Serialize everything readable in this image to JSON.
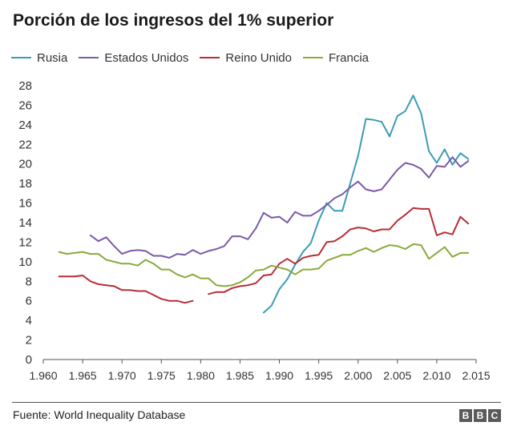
{
  "chart_data": {
    "type": "line",
    "title": "Porción de los ingresos del 1% superior",
    "xlabel": "",
    "ylabel": "",
    "xlim": [
      1960,
      2015
    ],
    "ylim": [
      0,
      28
    ],
    "x_ticks": [
      1960,
      1965,
      1970,
      1975,
      1980,
      1985,
      1990,
      1995,
      2000,
      2005,
      2010,
      2015
    ],
    "x_tick_labels": [
      "1.960",
      "1.965",
      "1.970",
      "1.975",
      "1.980",
      "1.985",
      "1.990",
      "1.995",
      "2.000",
      "2.005",
      "2.010",
      "2.015"
    ],
    "y_ticks": [
      0,
      2,
      4,
      6,
      8,
      10,
      12,
      14,
      16,
      18,
      20,
      22,
      24,
      26,
      28
    ],
    "legend_position": "top",
    "series": [
      {
        "name": "Rusia",
        "color": "#3a9cb8",
        "x": [
          1988,
          1989,
          1990,
          1991,
          1992,
          1993,
          1994,
          1995,
          1996,
          1997,
          1998,
          1999,
          2000,
          2001,
          2002,
          2003,
          2004,
          2005,
          2006,
          2007,
          2008,
          2009,
          2010,
          2011,
          2012,
          2013,
          2014
        ],
        "values": [
          4.8,
          5.5,
          7.2,
          8.2,
          9.7,
          11.0,
          11.9,
          14.2,
          16.0,
          15.2,
          15.2,
          18.0,
          20.8,
          24.6,
          24.5,
          24.3,
          22.8,
          24.9,
          25.4,
          27.0,
          25.2,
          21.3,
          20.1,
          21.5,
          19.9,
          21.1,
          20.5
        ]
      },
      {
        "name": "Estados Unidos",
        "color": "#7b5aa6",
        "x": [
          1966,
          1967,
          1968,
          1969,
          1970,
          1971,
          1972,
          1973,
          1974,
          1975,
          1976,
          1977,
          1978,
          1979,
          1980,
          1981,
          1982,
          1983,
          1984,
          1985,
          1986,
          1987,
          1988,
          1989,
          1990,
          1991,
          1992,
          1993,
          1994,
          1995,
          1996,
          1997,
          1998,
          1999,
          2000,
          2001,
          2002,
          2003,
          2004,
          2005,
          2006,
          2007,
          2008,
          2009,
          2010,
          2011,
          2012,
          2013,
          2014
        ],
        "values": [
          12.7,
          12.1,
          12.5,
          11.6,
          10.8,
          11.1,
          11.2,
          11.1,
          10.6,
          10.6,
          10.4,
          10.8,
          10.7,
          11.2,
          10.8,
          11.1,
          11.3,
          11.6,
          12.6,
          12.6,
          12.3,
          13.4,
          15.0,
          14.5,
          14.6,
          14.0,
          15.1,
          14.7,
          14.7,
          15.2,
          15.8,
          16.5,
          16.9,
          17.6,
          18.2,
          17.4,
          17.2,
          17.4,
          18.4,
          19.4,
          20.1,
          19.9,
          19.5,
          18.6,
          19.8,
          19.7,
          20.7,
          19.7,
          20.3
        ]
      },
      {
        "name": "Reino Unido",
        "color": "#b92c36",
        "x": [
          1962,
          1963,
          1964,
          1965,
          1966,
          1967,
          1968,
          1969,
          1970,
          1971,
          1972,
          1973,
          1974,
          1975,
          1976,
          1977,
          1978,
          1979,
          1980,
          1981,
          1982,
          1983,
          1984,
          1985,
          1986,
          1987,
          1988,
          1989,
          1990,
          1991,
          1992,
          1993,
          1994,
          1995,
          1996,
          1997,
          1998,
          1999,
          2000,
          2001,
          2002,
          2003,
          2004,
          2005,
          2006,
          2007,
          2008,
          2009,
          2010,
          2011,
          2012,
          2013,
          2014
        ],
        "values": [
          8.5,
          8.5,
          8.5,
          8.6,
          8.0,
          7.7,
          7.6,
          7.5,
          7.1,
          7.1,
          7.0,
          7.0,
          6.6,
          6.2,
          6.0,
          6.0,
          5.8,
          6.0,
          null,
          6.7,
          6.9,
          6.9,
          7.3,
          7.5,
          7.6,
          7.8,
          8.6,
          8.7,
          9.8,
          10.3,
          9.8,
          10.4,
          10.6,
          10.7,
          12.0,
          12.1,
          12.6,
          13.3,
          13.5,
          13.4,
          13.1,
          13.3,
          13.3,
          14.2,
          14.8,
          15.5,
          15.4,
          15.4,
          12.7,
          13.0,
          12.8,
          14.6,
          13.9
        ]
      },
      {
        "name": "Francia",
        "color": "#8aaa3c",
        "x": [
          1962,
          1963,
          1964,
          1965,
          1966,
          1967,
          1968,
          1969,
          1970,
          1971,
          1972,
          1973,
          1974,
          1975,
          1976,
          1977,
          1978,
          1979,
          1980,
          1981,
          1982,
          1983,
          1984,
          1985,
          1986,
          1987,
          1988,
          1989,
          1990,
          1991,
          1992,
          1993,
          1994,
          1995,
          1996,
          1997,
          1998,
          1999,
          2000,
          2001,
          2002,
          2003,
          2004,
          2005,
          2006,
          2007,
          2008,
          2009,
          2010,
          2011,
          2012,
          2013,
          2014
        ],
        "values": [
          11.0,
          10.8,
          10.9,
          11.0,
          10.8,
          10.8,
          10.2,
          10.0,
          9.8,
          9.8,
          9.6,
          10.2,
          9.8,
          9.2,
          9.2,
          8.7,
          8.4,
          8.7,
          8.3,
          8.3,
          7.6,
          7.5,
          7.6,
          7.9,
          8.4,
          9.1,
          9.2,
          9.6,
          9.4,
          9.2,
          8.7,
          9.2,
          9.2,
          9.3,
          10.1,
          10.4,
          10.7,
          10.7,
          11.1,
          11.4,
          11.0,
          11.4,
          11.7,
          11.6,
          11.3,
          11.8,
          11.7,
          10.3,
          10.9,
          11.5,
          10.5,
          10.9,
          10.9
        ]
      }
    ]
  },
  "source": "Fuente: World Inequality Database",
  "logo": "BBC"
}
